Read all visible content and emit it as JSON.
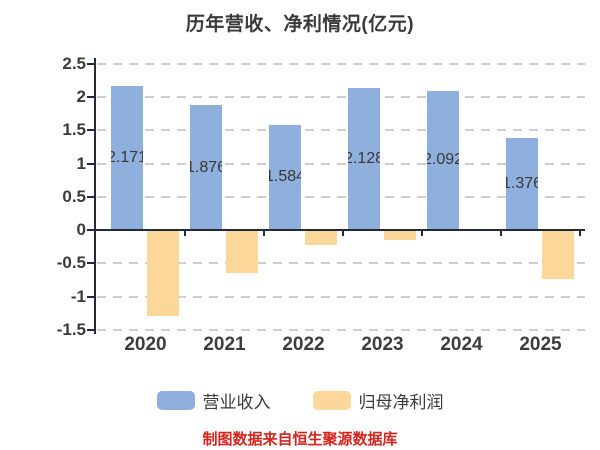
{
  "title": "历年营收、净利情况(亿元)",
  "footer": {
    "source_note": "制图数据来自恒生聚源数据库",
    "color": "#d7231d"
  },
  "legend": [
    {
      "label": "营业收入",
      "color": "#8fafdd"
    },
    {
      "label": "归母净利润",
      "color": "#fbd79a"
    }
  ],
  "colors": {
    "revenue_bar": "#8fafdd",
    "profit_bar": "#fbd79a",
    "axis": "#232b3a",
    "grid": "#cfcfcf",
    "text": "#3a3a3a"
  },
  "chart_data": {
    "type": "bar",
    "title": "历年营收、净利情况(亿元)",
    "categories": [
      "2020",
      "2021",
      "2022",
      "2023",
      "2024",
      "2025"
    ],
    "series": [
      {
        "name": "营业收入",
        "color": "#8fafdd",
        "values": [
          2.171,
          1.876,
          1.584,
          2.128,
          2.092,
          1.376
        ],
        "labels": [
          "2.171",
          "1.876",
          "1.584",
          "2.128",
          "2.092",
          "1.376"
        ]
      },
      {
        "name": "归母净利润",
        "color": "#fbd79a",
        "values": [
          -1.3,
          -0.65,
          -0.23,
          -0.15,
          -0.02,
          -0.73
        ],
        "labels": [
          "",
          "",
          "",
          "",
          "",
          ""
        ]
      }
    ],
    "ylim": [
      -1.5,
      2.5
    ],
    "ytick_values": [
      2.5,
      2,
      1.5,
      1,
      0.5,
      0,
      -0.5,
      -1,
      -1.5
    ],
    "ytick_labels": [
      "2.5",
      "2",
      "1.5",
      "1",
      "0.5",
      "0",
      "-0.5",
      "-1",
      "-1.5"
    ],
    "xlabel": "",
    "ylabel": "",
    "grid": "horizontal-dashed",
    "legend_position": "bottom"
  }
}
